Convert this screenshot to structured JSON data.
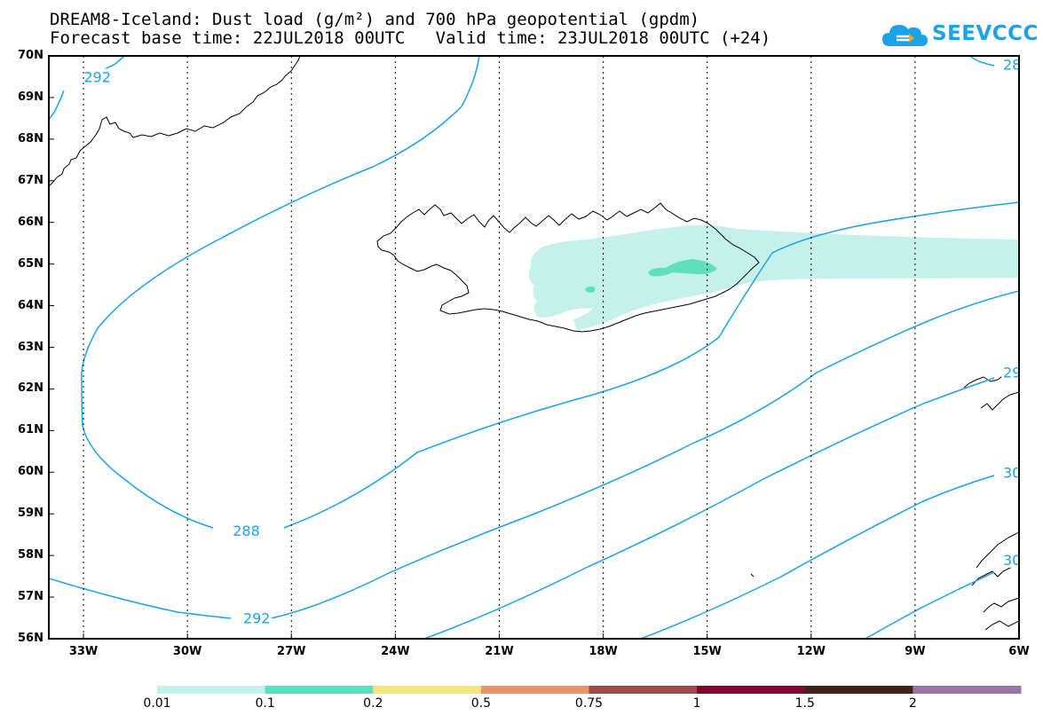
{
  "title_line1": "DREAM8-Iceland: Dust load (g/m²) and 700 hPa geopotential (gpdm)",
  "title_line2": "Forecast base time: 22JUL2018 00UTC   Valid time: 23JUL2018 00UTC (+24)",
  "logo_text": "SEEVCCC",
  "colors": {
    "contour": "#1aa3e8",
    "dust_low": "#c4f1e9",
    "dust_mid": "#5ee0bd"
  },
  "latitude_labels": [
    "70N",
    "69N",
    "68N",
    "67N",
    "66N",
    "65N",
    "64N",
    "63N",
    "62N",
    "61N",
    "60N",
    "59N",
    "58N",
    "57N",
    "56N"
  ],
  "longitude_labels": [
    "33W",
    "30W",
    "27W",
    "24W",
    "21W",
    "18W",
    "15W",
    "12W",
    "9W",
    "6W"
  ],
  "contour_labels": [
    {
      "text": "292",
      "lon": -32.6,
      "lat": 69.5
    },
    {
      "text": "288",
      "lon": -28.3,
      "lat": 58.6
    },
    {
      "text": "292",
      "lon": -28.0,
      "lat": 56.5
    },
    {
      "text": "28",
      "lon": -6.2,
      "lat": 69.8
    },
    {
      "text": "29",
      "lon": -6.2,
      "lat": 62.4
    },
    {
      "text": "30",
      "lon": -6.2,
      "lat": 60.0
    },
    {
      "text": "30",
      "lon": -6.2,
      "lat": 57.9
    }
  ],
  "colorbar": {
    "labels": [
      "0.01",
      "0.1",
      "0.2",
      "0.5",
      "0.75",
      "1",
      "1.5",
      "2"
    ],
    "colors": [
      "#c4f1e9",
      "#5ee0bd",
      "#f5e580",
      "#e8946b",
      "#a04a48",
      "#7d0a2e",
      "#3c2314",
      "#9a74a4"
    ]
  },
  "extent": {
    "lon_min": -34.0,
    "lon_max": -6.0,
    "lat_min": 56.0,
    "lat_max": 70.0
  }
}
